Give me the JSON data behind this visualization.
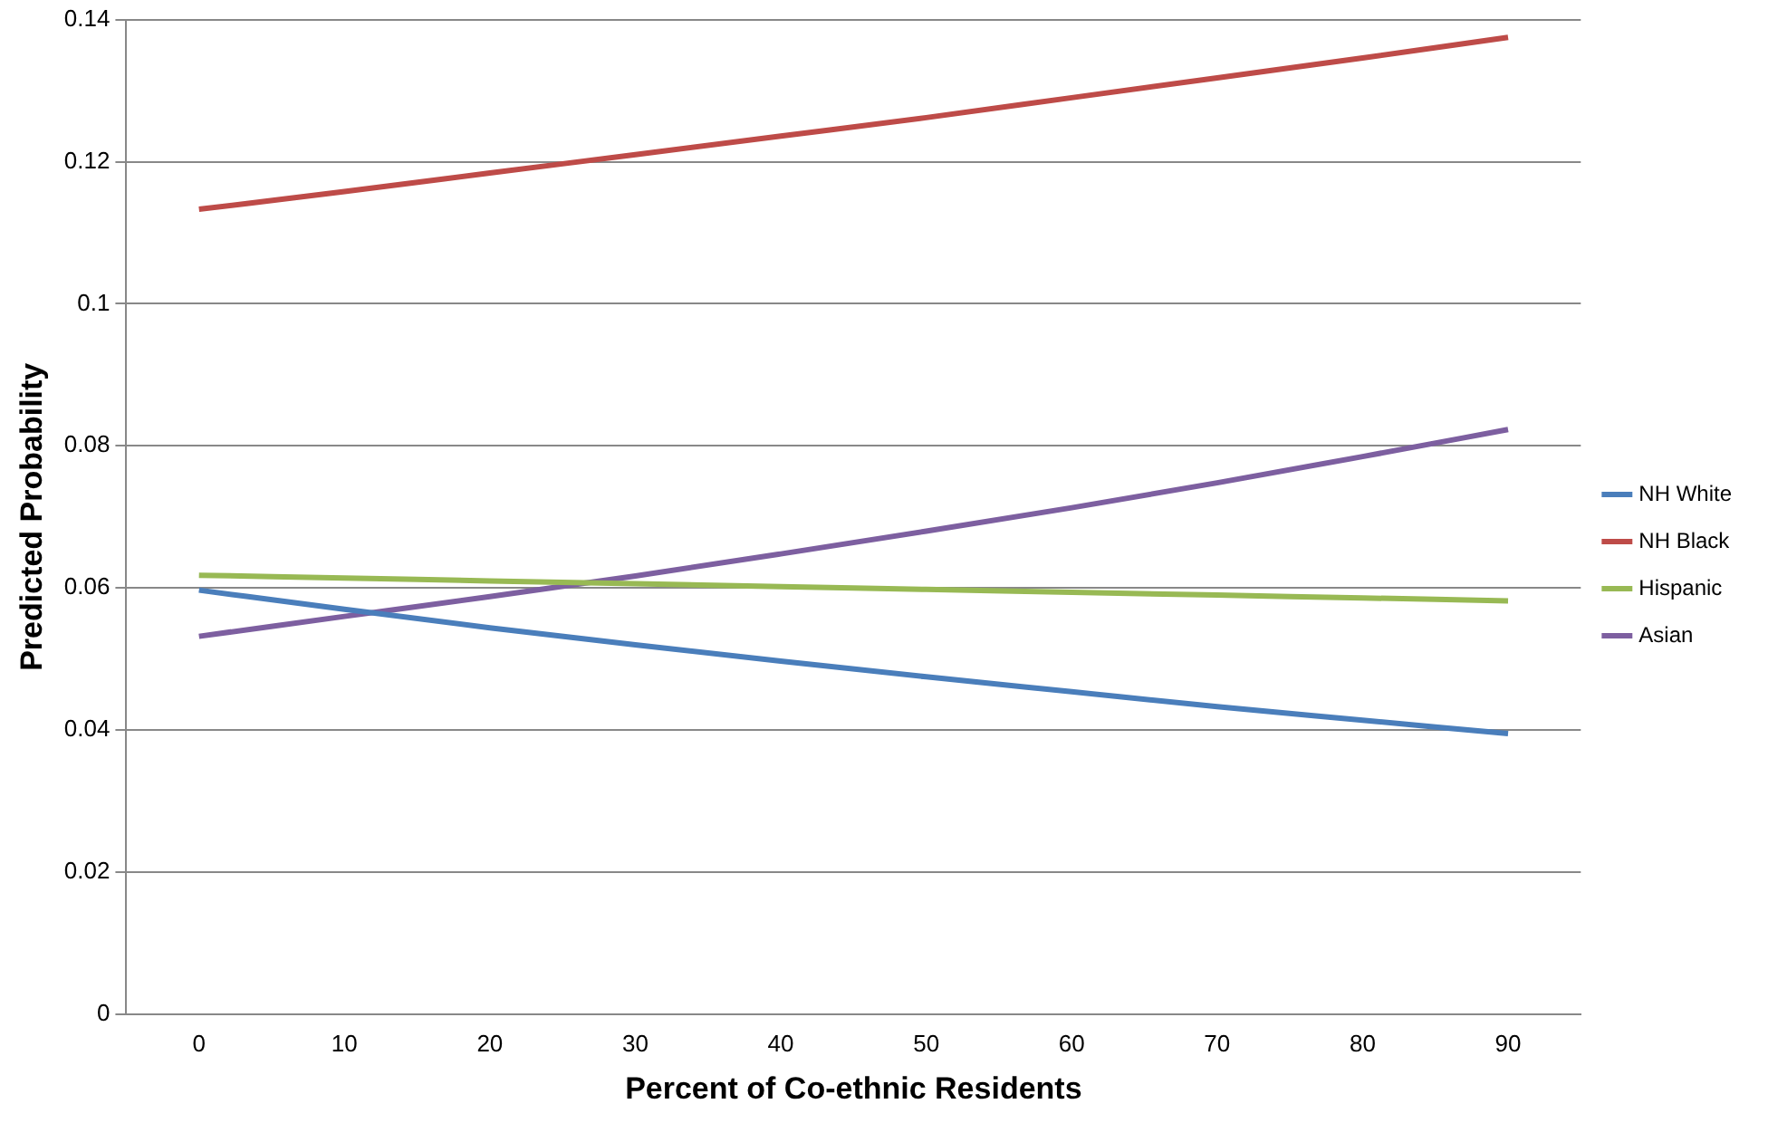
{
  "chart_data": {
    "type": "line",
    "xlabel": "Percent of Co-ethnic Residents",
    "ylabel": "Predicted Probability",
    "categories": [
      "0",
      "10",
      "20",
      "30",
      "40",
      "50",
      "60",
      "70",
      "80",
      "90"
    ],
    "series": [
      {
        "name": "NH White",
        "color": "#4a7ebb",
        "values": [
          0.0597,
          0.057,
          0.0544,
          0.052,
          0.0497,
          0.0475,
          0.0454,
          0.0433,
          0.0414,
          0.0395
        ]
      },
      {
        "name": "NH Black",
        "color": "#be4b48",
        "values": [
          0.1133,
          0.1158,
          0.1184,
          0.121,
          0.1236,
          0.1262,
          0.129,
          0.1318,
          0.1346,
          0.1375
        ]
      },
      {
        "name": "Hispanic",
        "color": "#98b954",
        "values": [
          0.0618,
          0.0614,
          0.061,
          0.0606,
          0.0602,
          0.0598,
          0.0594,
          0.059,
          0.0586,
          0.0582
        ]
      },
      {
        "name": "Asian",
        "color": "#7d5fa0",
        "values": [
          0.0532,
          0.056,
          0.0588,
          0.0617,
          0.0648,
          0.068,
          0.0713,
          0.0748,
          0.0785,
          0.0823
        ]
      }
    ],
    "ylim": [
      0,
      0.14
    ],
    "yticks": [
      0,
      0.02,
      0.04,
      0.06,
      0.08,
      0.1,
      0.12,
      0.14
    ],
    "grid": "y",
    "legend": "right",
    "marker": "none",
    "line_style": "solid"
  }
}
